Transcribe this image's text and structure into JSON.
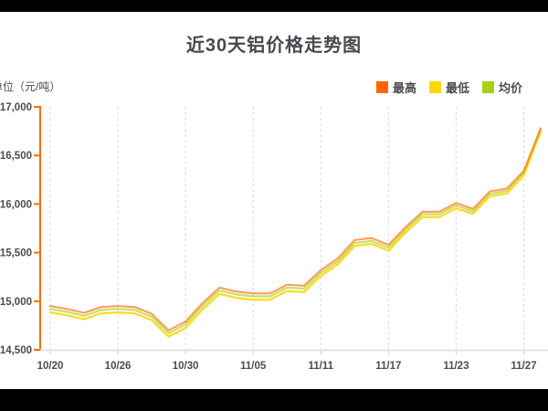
{
  "title": "近30天铝价格走势图",
  "y_axis_unit": "单位（元/吨）",
  "legend": {
    "items": [
      {
        "key": "high",
        "label": "最高",
        "color": "#ff6600"
      },
      {
        "key": "low",
        "label": "最低",
        "color": "#ffd800"
      },
      {
        "key": "avg",
        "label": "均价",
        "color": "#a9d018"
      }
    ]
  },
  "chart_data": {
    "type": "line",
    "title": "近30天铝价格走势图",
    "y_unit": "元/吨",
    "ylim": [
      14500,
      17000
    ],
    "grid": "vertical-dashed",
    "legend_position": "top-right",
    "y_ticks": [
      17000,
      16500,
      16000,
      15500,
      15000,
      14500
    ],
    "y_tick_labels": [
      "17,000",
      "16,500",
      "16,000",
      "15,500",
      "15,000",
      "14,500"
    ],
    "x_tick_labels": [
      "10/20",
      "10/26",
      "10/30",
      "11/05",
      "11/11",
      "11/17",
      "11/23",
      "11/27"
    ],
    "x_tick_point_indices": [
      0,
      4,
      8,
      12,
      16,
      20,
      24,
      28
    ],
    "series": [
      {
        "name": "最高",
        "key": "high",
        "color": "#ff6600",
        "values": [
          14950,
          14920,
          14880,
          14940,
          14950,
          14940,
          14870,
          14700,
          14790,
          14980,
          15140,
          15100,
          15080,
          15080,
          15170,
          15160,
          15320,
          15440,
          15630,
          15650,
          15580,
          15760,
          15920,
          15920,
          16010,
          15950,
          16130,
          16160,
          16340,
          16780
        ]
      },
      {
        "name": "最低",
        "key": "low",
        "color": "#ffd800",
        "values": [
          14885,
          14855,
          14815,
          14875,
          14885,
          14875,
          14805,
          14635,
          14725,
          14915,
          15075,
          15035,
          15015,
          15015,
          15105,
          15095,
          15260,
          15380,
          15570,
          15590,
          15520,
          15705,
          15865,
          15865,
          15955,
          15900,
          16080,
          16110,
          16295,
          16745
        ]
      },
      {
        "name": "均价",
        "key": "avg",
        "color": "#a9d018",
        "values": [
          14920,
          14890,
          14850,
          14910,
          14920,
          14910,
          14840,
          14670,
          14760,
          14950,
          15110,
          15070,
          15050,
          15050,
          15140,
          15130,
          15290,
          15410,
          15600,
          15620,
          15550,
          15735,
          15895,
          15895,
          15985,
          15925,
          16105,
          16135,
          16320,
          16765
        ]
      }
    ]
  },
  "colors": {
    "letterbox": "#000000",
    "background": "#ffffff",
    "y_axis": "#ff6a00",
    "x_axis": "#e3e3e3",
    "gridline": "#d9d9d9",
    "text": "#4c4c51"
  }
}
